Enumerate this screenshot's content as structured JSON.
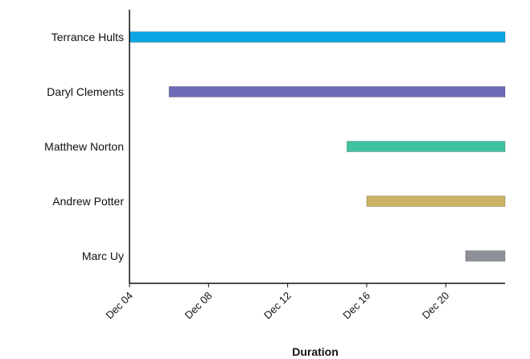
{
  "chart_data": {
    "type": "bar",
    "orientation": "horizontal",
    "title": "",
    "xlabel": "Duration",
    "ylabel": "",
    "grid": false,
    "x_ticks": [
      "Dec 04",
      "Dec 08",
      "Dec 12",
      "Dec 16",
      "Dec 20"
    ],
    "xlim": [
      "Dec 04",
      "Dec 23"
    ],
    "categories": [
      "Terrance Hults",
      "Daryl Clements",
      "Matthew Norton",
      "Andrew Potter",
      "Marc Uy"
    ],
    "series": [
      {
        "ranges": [
          {
            "start": "Dec 04",
            "end": "Dec 23"
          },
          {
            "start": "Dec 06",
            "end": "Dec 23"
          },
          {
            "start": "Dec 15",
            "end": "Dec 23"
          },
          {
            "start": "Dec 16",
            "end": "Dec 23"
          },
          {
            "start": "Dec 21",
            "end": "Dec 23"
          }
        ]
      }
    ],
    "colors": [
      "#0aa5e2",
      "#6c6bb8",
      "#3cc29e",
      "#cdb364",
      "#8d9097"
    ]
  }
}
